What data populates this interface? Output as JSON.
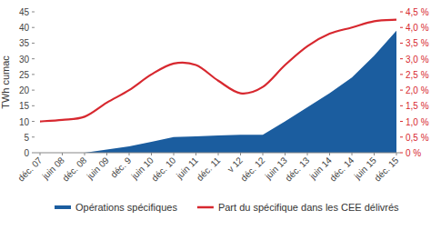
{
  "chart_data": {
    "type": "area",
    "y_label": "TWh cumac",
    "categories": [
      "déc. 07",
      "juin 08",
      "déc. 08",
      "juin 09",
      "déc. 9",
      "juin 10",
      "déc. 10",
      "juin 11",
      "déc. 11",
      "v 12",
      "déc. 12",
      "juin 13",
      "déc. 13",
      "juin 14",
      "déc. 14",
      "juin 15",
      "déc. 15"
    ],
    "series": [
      {
        "name": "Opérations spécifiques",
        "type": "area",
        "color": "#1b5d9f",
        "values": [
          null,
          null,
          0,
          1,
          2,
          3.5,
          5,
          5.2,
          5.5,
          5.7,
          5.7,
          10,
          14.5,
          19,
          24,
          31,
          39
        ]
      },
      {
        "name": "Part du spécifique dans les CEE délivrés",
        "type": "line",
        "color": "#d7282f",
        "axis": "y2",
        "values": [
          1.0,
          1.05,
          1.15,
          1.6,
          2.0,
          2.5,
          2.85,
          2.8,
          2.3,
          1.9,
          2.1,
          2.8,
          3.4,
          3.8,
          4.0,
          4.2,
          4.25
        ]
      }
    ],
    "ylim": [
      0,
      45
    ],
    "yticks": [
      0,
      5,
      10,
      15,
      20,
      25,
      30,
      35,
      40,
      45
    ],
    "y2lim": [
      0,
      4.5
    ],
    "y2ticks": [
      {
        "value": 0,
        "label": "0 %"
      },
      {
        "value": 0.5,
        "label": "0,5 %"
      },
      {
        "value": 1.0,
        "label": "1,0 %"
      },
      {
        "value": 1.5,
        "label": "1,5 %"
      },
      {
        "value": 2.0,
        "label": "2,0 %"
      },
      {
        "value": 2.5,
        "label": "2,5 %"
      },
      {
        "value": 3.0,
        "label": "3,0 %"
      },
      {
        "value": 3.5,
        "label": "3,5 %"
      },
      {
        "value": 4.0,
        "label": "4,0 %"
      },
      {
        "value": 4.5,
        "label": "4,5 %"
      }
    ],
    "grid": false,
    "legend": "bottom"
  }
}
